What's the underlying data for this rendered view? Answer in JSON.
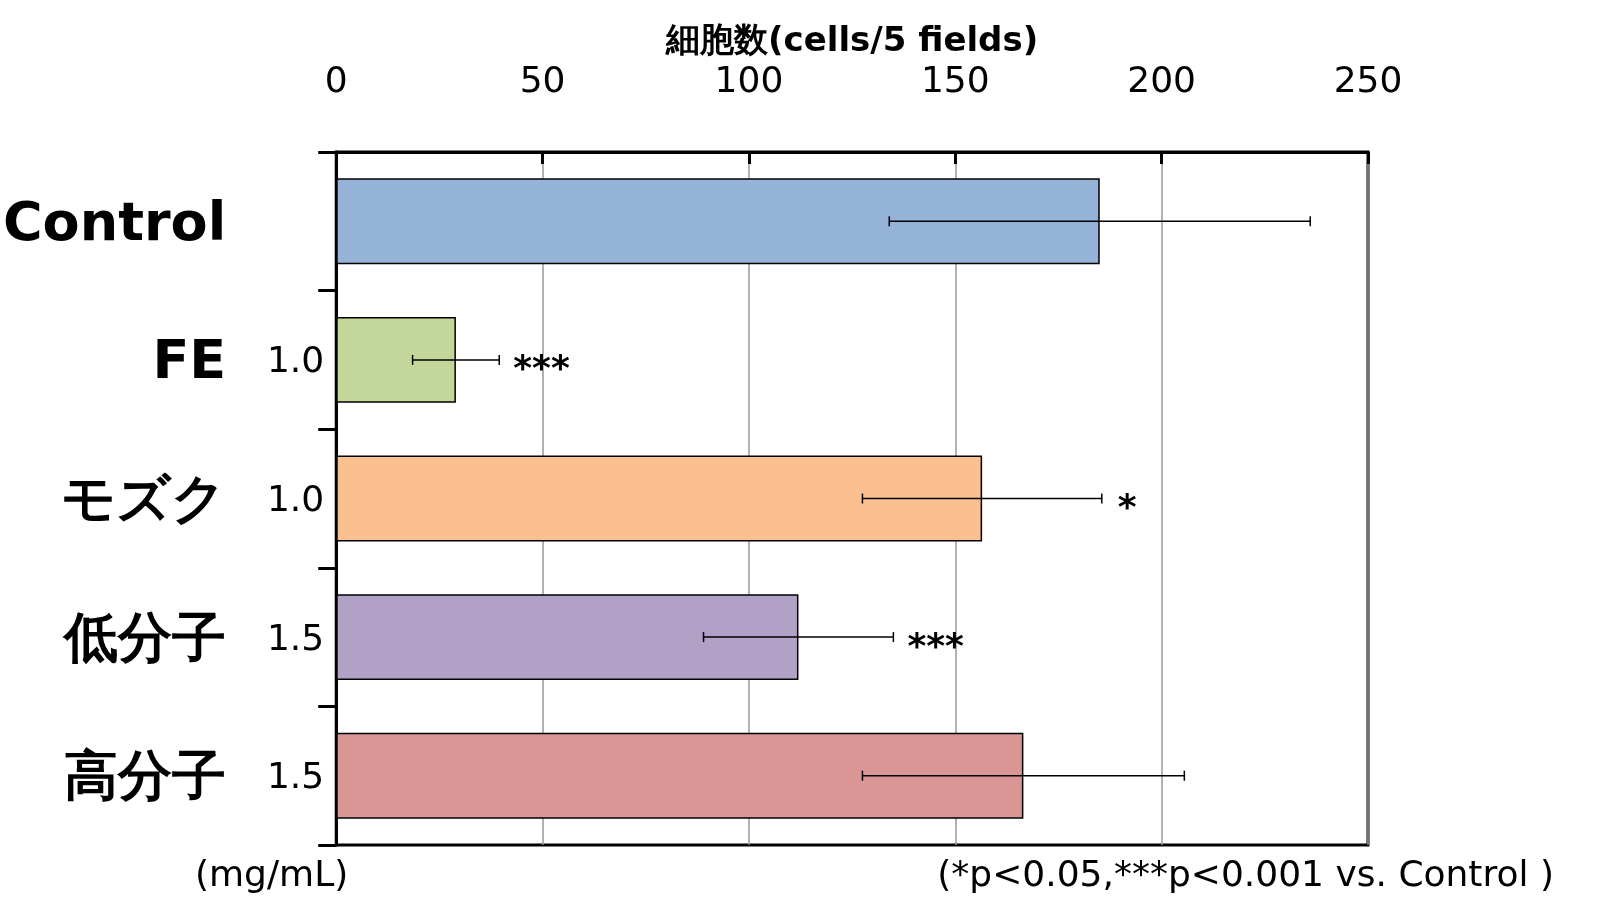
{
  "chart_data": {
    "type": "bar",
    "orientation": "horizontal",
    "xlabel": "細胞数(cells/5 fields)",
    "categories": [
      "Control",
      "FE",
      "モズク",
      "低分子",
      "高分子"
    ],
    "values": [
      185,
      29,
      156.5,
      112,
      166.5
    ],
    "errors": [
      51,
      10.5,
      29,
      23,
      39
    ],
    "colors": [
      "#95b3d7",
      "#c4d79b",
      "#fac090",
      "#b2a1c7",
      "#d99694"
    ],
    "xlim": [
      0,
      250
    ],
    "xticks": [
      0,
      50,
      100,
      150,
      200,
      250
    ],
    "grid": "x",
    "annotations": [
      "1.0",
      "1.0",
      "1.5",
      "1.5",
      {
        "text": "***",
        "x": 39.5,
        "y": "FE"
      },
      {
        "text": "*",
        "x": 186,
        "y": "モズク"
      },
      {
        "text": "***",
        "x": 135,
        "y": "低分子"
      },
      "(mg/mL)",
      "(*p<0.05,***p<0.001 vs. Control )"
    ]
  }
}
